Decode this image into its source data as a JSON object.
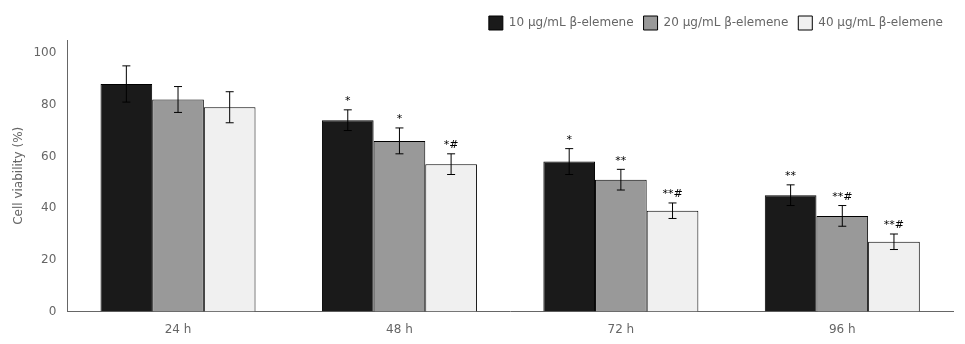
{
  "chart_data": {
    "type": "bar",
    "categories": [
      "24 h",
      "48 h",
      "72 h",
      "96 h"
    ],
    "series": [
      {
        "name": "10 μg/mL β-elemene",
        "color": "#1a1a1a",
        "values": [
          88,
          74,
          58,
          45
        ],
        "errors": [
          7,
          4,
          5,
          4
        ],
        "annotations": [
          null,
          "*",
          "*",
          "**"
        ]
      },
      {
        "name": "20 μg/mL β-elemene",
        "color": "#999999",
        "values": [
          82,
          66,
          51,
          37
        ],
        "errors": [
          5,
          5,
          4,
          4
        ],
        "annotations": [
          null,
          "*",
          "**",
          "**#"
        ]
      },
      {
        "name": "40 μg/mL β-elemene",
        "color": "#f0f0f0",
        "values": [
          79,
          57,
          39,
          27
        ],
        "errors": [
          6,
          4,
          3,
          3
        ],
        "annotations": [
          null,
          "*#",
          "**#",
          "**#"
        ]
      }
    ],
    "ylabel": "Cell viability (%)",
    "ylim": [
      0,
      105
    ],
    "yticks": [
      0,
      20,
      40,
      60,
      80,
      100
    ],
    "grid": false,
    "legend": "upper right"
  }
}
